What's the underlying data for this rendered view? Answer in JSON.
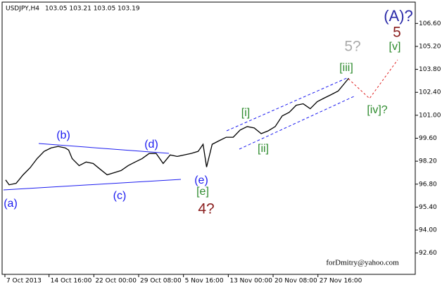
{
  "chart_data": {
    "type": "line",
    "title": "USDJPY,H4",
    "ohlc_header": "103.05 103.21 103.05 103.19",
    "series": [
      {
        "name": "USDJPY",
        "color": "#000000",
        "x": [
          2.5,
          5,
          10,
          15,
          20,
          25,
          30,
          35,
          40,
          45,
          47.5,
          50,
          55,
          60,
          65,
          70,
          75,
          80,
          85,
          90,
          95,
          100,
          105,
          110,
          115,
          120,
          125,
          130,
          135,
          140,
          143.5,
          146,
          150,
          155,
          160,
          165,
          170,
          175,
          180,
          185,
          190,
          195,
          200,
          205,
          210,
          215,
          220,
          225,
          230,
          235,
          240,
          245,
          247.5
        ],
        "values": [
          97.06,
          96.76,
          96.85,
          97.37,
          97.8,
          98.36,
          98.8,
          99.01,
          99.1,
          99.01,
          98.88,
          98.36,
          97.93,
          98.15,
          98.06,
          97.71,
          97.37,
          97.5,
          97.63,
          97.93,
          98.15,
          98.36,
          98.67,
          98.67,
          98.06,
          98.58,
          98.49,
          98.58,
          98.67,
          98.8,
          99.23,
          97.84,
          99.23,
          99.45,
          99.66,
          99.66,
          100.1,
          100.31,
          100.23,
          99.88,
          100.05,
          100.31,
          100.96,
          101.18,
          101.61,
          101.7,
          101.4,
          101.83,
          102.05,
          102.26,
          102.48,
          103.0,
          103.26
        ]
      }
    ],
    "xlim": [
      0,
      295
    ],
    "xticks": [
      {
        "value": 2,
        "label": "7 Oct 2013"
      },
      {
        "value": 33.5,
        "label": "14 Oct 16:00"
      },
      {
        "value": 65.5,
        "label": "22 Oct 00:00"
      },
      {
        "value": 97.5,
        "label": "29 Oct 08:00"
      },
      {
        "value": 129.5,
        "label": "5 Nov 16:00"
      },
      {
        "value": 161.5,
        "label": "13 Nov 00:00"
      },
      {
        "value": 193.5,
        "label": "20 Nov 08:00"
      },
      {
        "value": 225.5,
        "label": "27 Nov 16:00"
      }
    ],
    "ylim": [
      91.3,
      107.9
    ],
    "yticks": [
      {
        "value": 106.6,
        "label": "106.60"
      },
      {
        "value": 105.2,
        "label": "105.20"
      },
      {
        "value": 103.8,
        "label": "103.80"
      },
      {
        "value": 102.4,
        "label": "102.40"
      },
      {
        "value": 101.0,
        "label": "101.00"
      },
      {
        "value": 99.6,
        "label": "99.60"
      },
      {
        "value": 98.2,
        "label": "98.20"
      },
      {
        "value": 96.8,
        "label": "96.80"
      },
      {
        "value": 95.4,
        "label": "95.40"
      },
      {
        "value": 94.0,
        "label": "94.00"
      },
      {
        "value": 92.6,
        "label": "92.60"
      }
    ],
    "annotations": [
      "(a)",
      "(b)",
      "(c)",
      "(d)",
      "(e)",
      "[e]",
      "4?",
      "[i]",
      "[ii]",
      "[iii]",
      "5?",
      "[iv]?",
      "[v]",
      "5",
      "(A)?",
      "forDmitry@yahoo.com"
    ]
  }
}
